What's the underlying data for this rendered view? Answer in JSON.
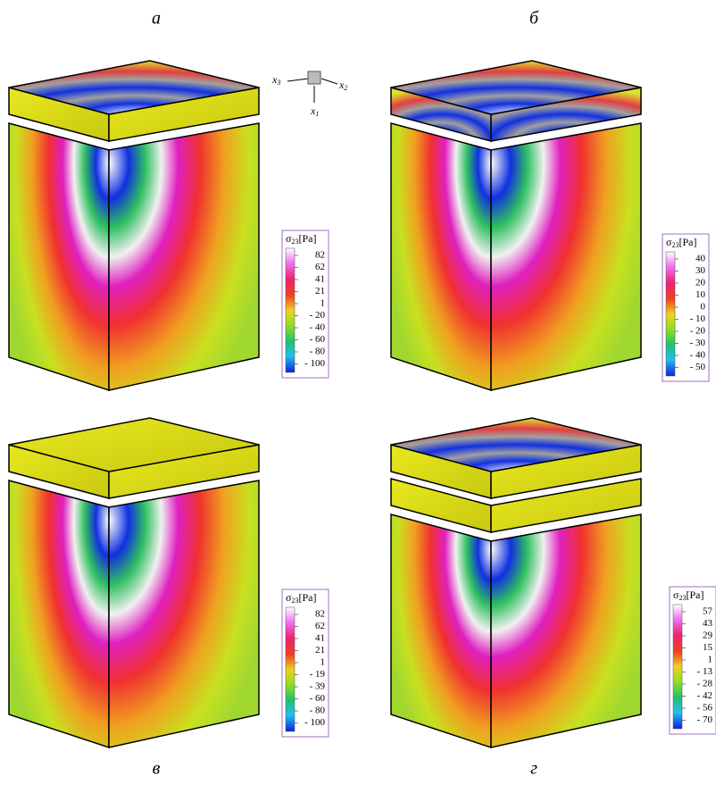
{
  "panels": [
    {
      "label": "а",
      "legend": {
        "symbol": "σ",
        "index": "23",
        "unit": "[Pa]",
        "ticks": [
          "82",
          "62",
          "41",
          "21",
          "1",
          "- 20",
          "- 40",
          "- 60",
          "- 80",
          "- 100"
        ]
      }
    },
    {
      "label": "б",
      "legend": {
        "symbol": "σ",
        "index": "23",
        "unit": "[Pa]",
        "ticks": [
          "40",
          "30",
          "20",
          "10",
          "0",
          "- 10",
          "- 20",
          "- 30",
          "- 40",
          "- 50"
        ]
      }
    },
    {
      "label": "в",
      "legend": {
        "symbol": "σ",
        "index": "23",
        "unit": "[Pa]",
        "ticks": [
          "82",
          "62",
          "41",
          "21",
          "1",
          "- 19",
          "- 39",
          "- 60",
          "- 80",
          "- 100"
        ]
      }
    },
    {
      "label": "г",
      "legend": {
        "symbol": "σ",
        "index": "23",
        "unit": "[Pa]",
        "ticks": [
          "57",
          "43",
          "29",
          "15",
          "1",
          "- 13",
          "- 28",
          "- 42",
          "- 56",
          "- 70"
        ]
      }
    }
  ],
  "axes": [
    {
      "symbol": "x",
      "index": "3"
    },
    {
      "symbol": "x",
      "index": "2"
    },
    {
      "symbol": "x",
      "index": "1"
    }
  ]
}
